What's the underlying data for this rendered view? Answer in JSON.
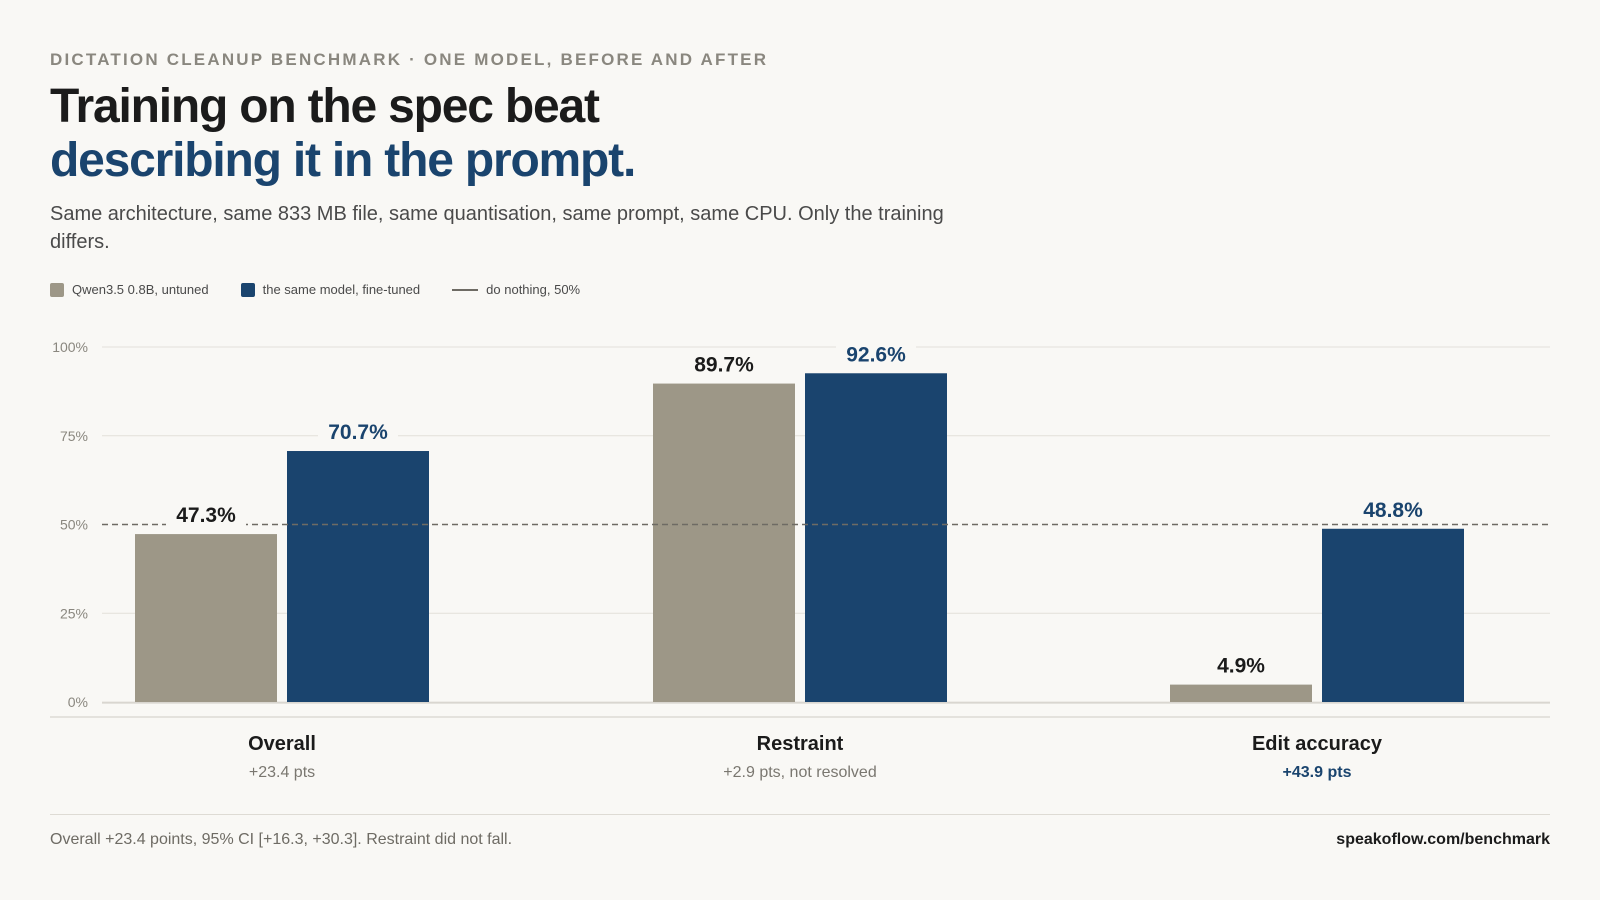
{
  "header": {
    "eyebrow": "DICTATION CLEANUP BENCHMARK · ONE MODEL, BEFORE AND AFTER",
    "title_line1": "Training on the spec beat",
    "title_line2": "describing it in the prompt.",
    "subtitle": "Same architecture, same 833 MB file, same quantisation, same prompt, same CPU. Only the training differs."
  },
  "legend": {
    "untuned": "Qwen3.5 0.8B, untuned",
    "finetuned": "the same model, fine-tuned",
    "baseline": "do nothing, 50%"
  },
  "colors": {
    "untuned": "#9d9787",
    "finetuned": "#1a446e",
    "baseline": "#6e6b64",
    "grid": "#e3e0da"
  },
  "chart_data": {
    "type": "bar",
    "categories": [
      "Overall",
      "Restraint",
      "Edit accuracy"
    ],
    "series": [
      {
        "name": "Qwen3.5 0.8B, untuned",
        "values": [
          47.3,
          89.7,
          4.9
        ]
      },
      {
        "name": "the same model, fine-tuned",
        "values": [
          70.7,
          92.6,
          48.8
        ]
      }
    ],
    "value_labels": [
      [
        "47.3%",
        "89.7%",
        "4.9%"
      ],
      [
        "70.7%",
        "92.6%",
        "48.8%"
      ]
    ],
    "baseline": {
      "name": "do nothing, 50%",
      "value": 50
    },
    "ylim": [
      0,
      100
    ],
    "yticks": [
      0,
      25,
      50,
      75,
      100
    ],
    "ytick_labels": [
      "0%",
      "25%",
      "50%",
      "75%",
      "100%"
    ],
    "grid": true,
    "legend_position": "top-left"
  },
  "groups": [
    {
      "name": "Overall",
      "delta": "+23.4 pts"
    },
    {
      "name": "Restraint",
      "delta": "+2.9 pts, not resolved"
    },
    {
      "name": "Edit accuracy",
      "delta": "+43.9 pts"
    }
  ],
  "footer": {
    "note": "Overall +23.4 points, 95% CI [+16.3, +30.3]. Restraint did not fall.",
    "source": "speakoflow.com/benchmark"
  }
}
